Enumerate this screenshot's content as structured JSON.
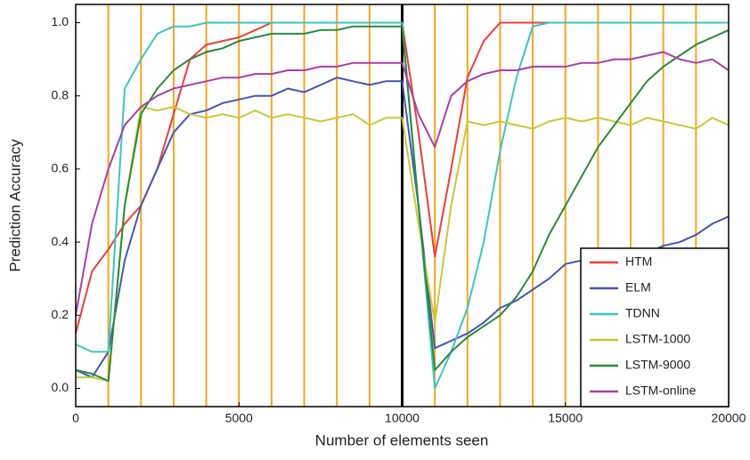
{
  "chart_data": {
    "type": "line",
    "xlabel": "Number of elements seen",
    "ylabel": "Prediction Accuracy",
    "x": [
      0,
      500,
      1000,
      1500,
      2000,
      2500,
      3000,
      3500,
      4000,
      4500,
      5000,
      5500,
      6000,
      6500,
      7000,
      7500,
      8000,
      8500,
      9000,
      9500,
      10000,
      10500,
      11000,
      11500,
      12000,
      12500,
      13000,
      13500,
      14000,
      14500,
      15000,
      15500,
      16000,
      16500,
      17000,
      17500,
      18000,
      18500,
      19000,
      19500,
      20000
    ],
    "series": [
      {
        "name": "HTM",
        "color": "#e8403a",
        "values": [
          0.15,
          0.32,
          0.38,
          0.45,
          0.5,
          0.6,
          0.75,
          0.9,
          0.94,
          0.95,
          0.96,
          0.98,
          1.0,
          1.0,
          1.0,
          1.0,
          1.0,
          1.0,
          1.0,
          1.0,
          1.0,
          0.7,
          0.36,
          0.6,
          0.85,
          0.95,
          1.0,
          1.0,
          1.0,
          1.0,
          1.0,
          1.0,
          1.0,
          1.0,
          1.0,
          1.0,
          1.0,
          1.0,
          1.0,
          1.0,
          1.0
        ]
      },
      {
        "name": "ELM",
        "color": "#4457b3",
        "values": [
          0.05,
          0.03,
          0.1,
          0.35,
          0.5,
          0.6,
          0.7,
          0.75,
          0.76,
          0.78,
          0.79,
          0.8,
          0.8,
          0.82,
          0.81,
          0.83,
          0.85,
          0.84,
          0.83,
          0.84,
          0.84,
          0.5,
          0.11,
          0.13,
          0.15,
          0.18,
          0.22,
          0.24,
          0.27,
          0.3,
          0.34,
          0.35,
          0.36,
          0.36,
          0.38,
          0.37,
          0.39,
          0.4,
          0.42,
          0.45,
          0.47
        ]
      },
      {
        "name": "TDNN",
        "color": "#3fc3c3",
        "values": [
          0.12,
          0.1,
          0.1,
          0.82,
          0.9,
          0.97,
          0.99,
          0.99,
          1.0,
          1.0,
          1.0,
          1.0,
          1.0,
          1.0,
          1.0,
          1.0,
          1.0,
          1.0,
          1.0,
          1.0,
          1.0,
          0.5,
          0.0,
          0.1,
          0.22,
          0.4,
          0.65,
          0.85,
          0.99,
          1.0,
          1.0,
          1.0,
          1.0,
          1.0,
          1.0,
          1.0,
          1.0,
          1.0,
          1.0,
          1.0,
          1.0
        ]
      },
      {
        "name": "LSTM-1000",
        "color": "#c8c83a",
        "values": [
          0.03,
          0.03,
          0.02,
          0.5,
          0.77,
          0.76,
          0.77,
          0.75,
          0.74,
          0.75,
          0.74,
          0.76,
          0.74,
          0.75,
          0.74,
          0.73,
          0.74,
          0.75,
          0.72,
          0.74,
          0.74,
          0.45,
          0.18,
          0.5,
          0.73,
          0.72,
          0.73,
          0.72,
          0.71,
          0.73,
          0.74,
          0.73,
          0.74,
          0.73,
          0.72,
          0.74,
          0.73,
          0.72,
          0.71,
          0.74,
          0.72
        ]
      },
      {
        "name": "LSTM-9000",
        "color": "#2a8a3a",
        "values": [
          0.05,
          0.04,
          0.02,
          0.5,
          0.75,
          0.82,
          0.87,
          0.9,
          0.92,
          0.93,
          0.95,
          0.96,
          0.97,
          0.97,
          0.97,
          0.98,
          0.98,
          0.99,
          0.99,
          0.99,
          0.99,
          0.5,
          0.05,
          0.1,
          0.14,
          0.17,
          0.2,
          0.25,
          0.32,
          0.42,
          0.5,
          0.58,
          0.66,
          0.72,
          0.78,
          0.84,
          0.88,
          0.91,
          0.94,
          0.96,
          0.98
        ]
      },
      {
        "name": "LSTM-online",
        "color": "#a83fa8",
        "values": [
          0.2,
          0.45,
          0.6,
          0.72,
          0.77,
          0.8,
          0.82,
          0.83,
          0.84,
          0.85,
          0.85,
          0.86,
          0.86,
          0.87,
          0.87,
          0.88,
          0.88,
          0.89,
          0.89,
          0.89,
          0.89,
          0.75,
          0.66,
          0.8,
          0.84,
          0.86,
          0.87,
          0.87,
          0.88,
          0.88,
          0.88,
          0.89,
          0.89,
          0.9,
          0.9,
          0.91,
          0.92,
          0.9,
          0.89,
          0.9,
          0.87
        ]
      }
    ],
    "xlim": [
      0,
      20000
    ],
    "xticks": [
      0,
      5000,
      10000,
      15000,
      20000
    ],
    "ylim": [
      -0.05,
      1.05
    ],
    "yticks": [
      {
        "value": 0,
        "label": "0.0"
      },
      {
        "value": 0.2,
        "label": "0.2"
      },
      {
        "value": 0.4,
        "label": "0.4"
      },
      {
        "value": 0.6,
        "label": "0.6"
      },
      {
        "value": 0.8,
        "label": "0.8"
      },
      {
        "value": 1.0,
        "label": "1.0"
      }
    ],
    "vlines": [
      1000,
      2000,
      3000,
      4000,
      5000,
      6000,
      7000,
      8000,
      9000,
      11000,
      12000,
      13000,
      14000,
      15000,
      16000,
      17000,
      18000,
      19000
    ],
    "vline_color": "#f5a623",
    "divider": 10000,
    "divider_color": "#000000",
    "legend": "lower right"
  }
}
